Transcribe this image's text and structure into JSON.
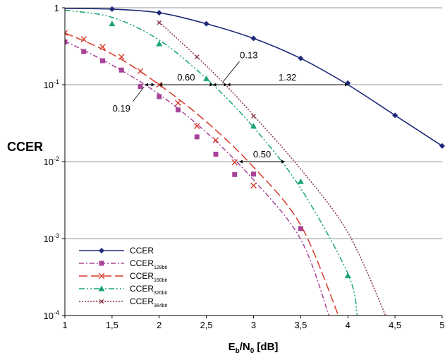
{
  "chart_data": {
    "type": "line",
    "ylabel": "CCER",
    "xlabel": {
      "base": "E",
      "sub1": "b",
      "mid": "/N",
      "sub2": "0",
      "unit": " [dB]"
    },
    "xlim": [
      1,
      5
    ],
    "ylim": [
      0.0001,
      1
    ],
    "yscale": "log",
    "grid": "horizontal",
    "legend_position": "bottom-left",
    "x_ticks": [
      "1",
      "1,5",
      "2",
      "2,5",
      "3",
      "3,5",
      "4",
      "4,5",
      "5"
    ],
    "y_ticks": [
      {
        "base": "1",
        "exp": ""
      },
      {
        "base": "10",
        "exp": "-1"
      },
      {
        "base": "10",
        "exp": "-2"
      },
      {
        "base": "10",
        "exp": "-3"
      },
      {
        "base": "10",
        "exp": "-4"
      }
    ],
    "series": [
      {
        "name": "CCER",
        "sub": "",
        "color": "#1f2a78",
        "marker": "diamond",
        "curve": [
          [
            1.0,
            0.98
          ],
          [
            1.5,
            0.96
          ],
          [
            2.0,
            0.86
          ],
          [
            2.5,
            0.62
          ],
          [
            3.0,
            0.4
          ],
          [
            3.5,
            0.22
          ],
          [
            4.0,
            0.1
          ],
          [
            4.5,
            0.04
          ],
          [
            5.0,
            0.016
          ]
        ],
        "points": [
          [
            1.5,
            0.96
          ],
          [
            2.0,
            0.86
          ],
          [
            2.5,
            0.62
          ],
          [
            3.0,
            0.4
          ],
          [
            3.5,
            0.22
          ],
          [
            4.0,
            0.105
          ],
          [
            4.5,
            0.04
          ],
          [
            5.0,
            0.016
          ]
        ]
      },
      {
        "name": "CCER",
        "sub": "128bit",
        "color": "#a8439a",
        "marker": "square",
        "curve": [
          [
            1.0,
            0.37
          ],
          [
            1.5,
            0.18
          ],
          [
            2.0,
            0.075
          ],
          [
            2.5,
            0.024
          ],
          [
            3.0,
            0.0058
          ],
          [
            3.5,
            0.00098
          ],
          [
            3.8,
            0.0001
          ]
        ],
        "points": [
          [
            1.0,
            0.36
          ],
          [
            1.2,
            0.27
          ],
          [
            1.4,
            0.205
          ],
          [
            1.6,
            0.155
          ],
          [
            1.8,
            0.095
          ],
          [
            2.0,
            0.07
          ],
          [
            2.2,
            0.047
          ],
          [
            2.4,
            0.021
          ],
          [
            2.6,
            0.0125
          ],
          [
            2.8,
            0.0068
          ],
          [
            3.0,
            0.0069
          ],
          [
            3.5,
            0.00135
          ]
        ]
      },
      {
        "name": "CCER",
        "sub": "160bit",
        "color": "#d83a2a",
        "marker": "x",
        "curve": [
          [
            1.0,
            0.47
          ],
          [
            1.5,
            0.25
          ],
          [
            2.0,
            0.1
          ],
          [
            2.5,
            0.033
          ],
          [
            3.0,
            0.0085
          ],
          [
            3.5,
            0.0015
          ],
          [
            3.9,
            0.0001
          ]
        ],
        "points": [
          [
            1.0,
            0.47
          ],
          [
            1.2,
            0.39
          ],
          [
            1.4,
            0.31
          ],
          [
            1.6,
            0.23
          ],
          [
            1.8,
            0.15
          ],
          [
            2.0,
            0.1
          ],
          [
            2.2,
            0.058
          ],
          [
            2.4,
            0.029
          ],
          [
            2.6,
            0.019
          ],
          [
            2.8,
            0.0098
          ],
          [
            3.0,
            0.0049
          ]
        ]
      },
      {
        "name": "CCER",
        "sub": "320bit",
        "color": "#1aa37a",
        "marker": "triangle",
        "curve": [
          [
            1.0,
            0.93
          ],
          [
            1.5,
            0.75
          ],
          [
            2.0,
            0.38
          ],
          [
            2.5,
            0.12
          ],
          [
            3.0,
            0.028
          ],
          [
            3.5,
            0.0045
          ],
          [
            4.0,
            0.00035
          ],
          [
            4.1,
            0.0001
          ]
        ],
        "points": [
          [
            1.5,
            0.62
          ],
          [
            2.0,
            0.34
          ],
          [
            2.5,
            0.12
          ],
          [
            3.0,
            0.029
          ],
          [
            3.5,
            0.0055
          ],
          [
            4.0,
            0.00033
          ]
        ]
      },
      {
        "name": "CCER",
        "sub": "384bit",
        "color": "#8a3a4a",
        "marker": "xsmall",
        "curve": [
          [
            2.0,
            0.65
          ],
          [
            2.4,
            0.23
          ],
          [
            2.7,
            0.1
          ],
          [
            3.0,
            0.04
          ],
          [
            3.5,
            0.008
          ],
          [
            4.0,
            0.0012
          ],
          [
            4.4,
            0.0001
          ]
        ],
        "points": [
          [
            2.0,
            0.64
          ],
          [
            2.4,
            0.23
          ],
          [
            3.0,
            0.039
          ]
        ]
      }
    ],
    "annotations": [
      {
        "text": "0.19",
        "arrow": [
          1.85,
          1.95
        ],
        "y": 0.1
      },
      {
        "text": "0.60",
        "arrow": [
          2.0,
          2.57
        ],
        "y": 0.1
      },
      {
        "text": "0.13",
        "arrow": [
          2.57,
          2.72
        ],
        "y": 0.1
      },
      {
        "text": "1.32",
        "arrow": [
          2.72,
          4.0
        ],
        "y": 0.1
      },
      {
        "text": "0.50",
        "arrow": [
          2.85,
          3.33
        ],
        "y": 0.01
      }
    ]
  }
}
